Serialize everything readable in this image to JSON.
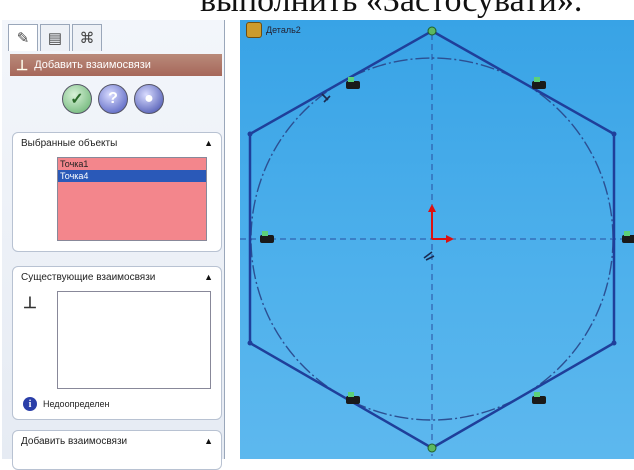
{
  "caption": {
    "text": "выполнить «Застосувати»."
  },
  "panel": {
    "tabs": [
      {
        "icon": "property-manager-icon"
      },
      {
        "icon": "config-icon"
      },
      {
        "icon": "dimxpert-icon"
      }
    ],
    "title": "Добавить взаимосвязи",
    "buttons": [
      {
        "icon": "ok-check-icon",
        "glyph": "✓"
      },
      {
        "icon": "help-icon",
        "glyph": "?"
      },
      {
        "icon": "pushpin-icon",
        "glyph": "●"
      }
    ],
    "selected_group": {
      "title": "Выбранные объекты",
      "items": [
        "Точка1",
        "Точка4"
      ]
    },
    "existing_group": {
      "title": "Существующие взаимосвязи",
      "status": "Недоопределен"
    },
    "add_group": {
      "title": "Добавить взаимосвязи"
    }
  },
  "viewport": {
    "part_name": "Деталь2",
    "colors": {
      "background": "#4aaeea",
      "sketch": "#1f3f9a",
      "construction": "#2c4f92"
    }
  }
}
